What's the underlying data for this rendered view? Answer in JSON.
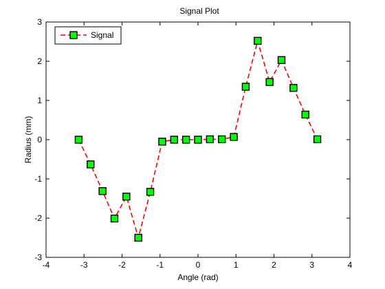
{
  "chart_data": {
    "type": "line",
    "title": "Signal Plot",
    "xlabel": "Angle (rad)",
    "ylabel": "Radius (mm)",
    "xlim": [
      -4,
      4
    ],
    "ylim": [
      -3,
      3
    ],
    "xticks": [
      "-4",
      "-3",
      "-2",
      "-1",
      "0",
      "1",
      "2",
      "3",
      "4"
    ],
    "yticks": [
      "-3",
      "-2",
      "-1",
      "0",
      "1",
      "2",
      "3"
    ],
    "grid": false,
    "legend": {
      "position": "top-left"
    },
    "series": [
      {
        "name": "Signal",
        "line_color": "#ff0000",
        "line_style": "dashed",
        "marker": "square",
        "marker_face_color": "#00ff00",
        "marker_edge_color": "#000000",
        "x": [
          -3.1416,
          -2.8274,
          -2.5133,
          -2.1991,
          -1.885,
          -1.5708,
          -1.2566,
          -0.9425,
          -0.6283,
          -0.3142,
          0.0,
          0.3142,
          0.6283,
          0.9425,
          1.2566,
          1.5708,
          1.885,
          2.1991,
          2.5133,
          2.8274,
          3.1416
        ],
        "y": [
          0.0,
          -0.63,
          -1.31,
          -2.01,
          -1.45,
          -2.5,
          -1.33,
          -0.05,
          0.0,
          0.0,
          0.0,
          0.01,
          0.01,
          0.07,
          1.35,
          2.52,
          1.47,
          2.03,
          1.32,
          0.64,
          0.01
        ]
      }
    ]
  }
}
